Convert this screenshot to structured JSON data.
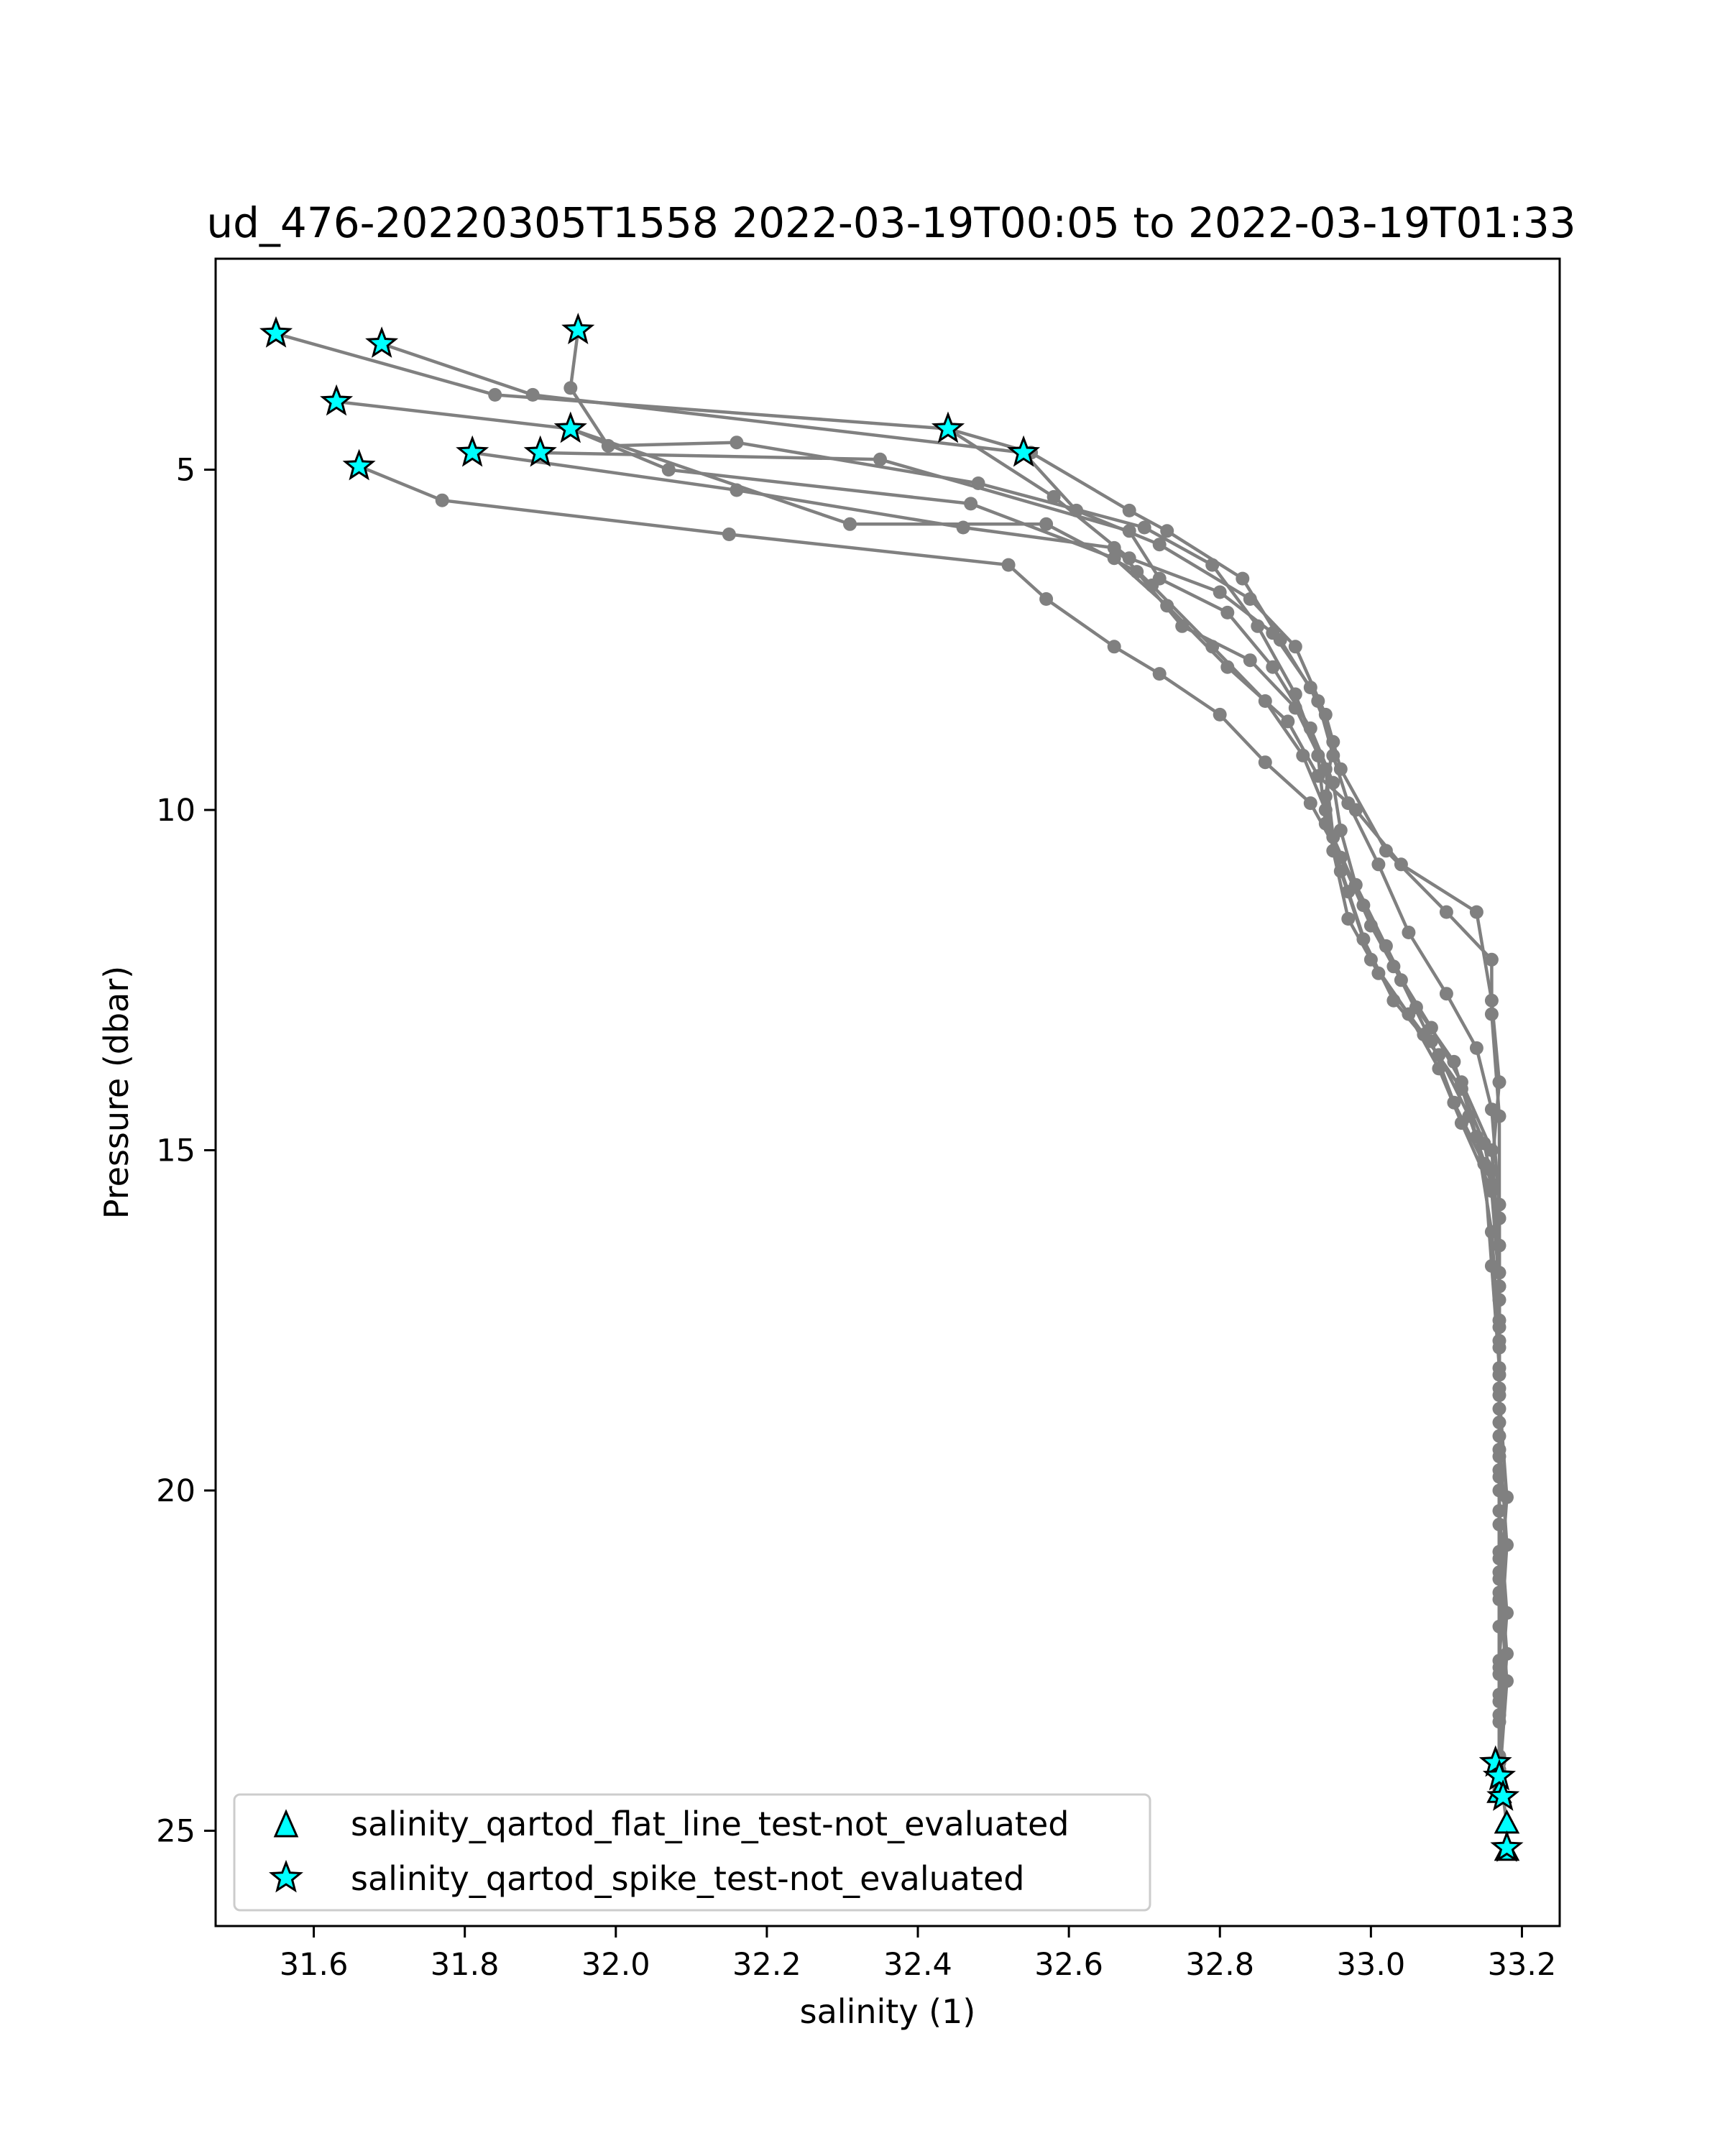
{
  "chart_data": {
    "type": "line",
    "title": "ud_476-20220305T1558 2022-03-19T00:05 to 2022-03-19T01:33",
    "xlabel": "salinity (1)",
    "ylabel": "Pressure (dbar)",
    "xlim": [
      31.47,
      33.25
    ],
    "ylim": [
      26.4,
      1.9
    ],
    "y_inverted": true,
    "grid": false,
    "xticks": [
      "31.6",
      "31.8",
      "32.0",
      "32.2",
      "32.4",
      "32.6",
      "32.8",
      "33.0",
      "33.2"
    ],
    "yticks": [
      "5",
      "10",
      "15",
      "20",
      "25"
    ],
    "line_color": "#808080",
    "marker_color": "#00ffff",
    "legend": {
      "position": "lower left",
      "entries": [
        {
          "marker": "triangle",
          "label": "salinity_qartod_flat_line_test-not_evaluated"
        },
        {
          "marker": "star",
          "label": "salinity_qartod_spike_test-not_evaluated"
        }
      ]
    },
    "series": [
      {
        "points": [
          [
            31.55,
            3.0
          ],
          [
            31.84,
            3.9
          ],
          [
            32.44,
            4.4
          ],
          [
            32.58,
            5.4
          ],
          [
            32.68,
            6.3
          ],
          [
            32.8,
            6.8
          ],
          [
            32.87,
            7.4
          ],
          [
            32.92,
            8.2
          ],
          [
            32.95,
            9.0
          ],
          [
            32.94,
            9.8
          ],
          [
            32.95,
            10.6
          ],
          [
            32.97,
            11.6
          ],
          [
            33.01,
            12.4
          ],
          [
            33.07,
            13.3
          ],
          [
            33.12,
            14.1
          ],
          [
            33.15,
            14.9
          ],
          [
            33.17,
            16.0
          ],
          [
            33.17,
            17.5
          ],
          [
            33.17,
            19.0
          ],
          [
            33.17,
            20.5
          ],
          [
            33.17,
            22.0
          ],
          [
            33.17,
            23.4
          ],
          [
            33.17,
            24.2
          ]
        ]
      },
      {
        "points": [
          [
            31.69,
            3.15
          ],
          [
            31.89,
            3.9
          ],
          [
            32.54,
            4.75
          ],
          [
            32.61,
            5.6
          ],
          [
            32.72,
            6.1
          ],
          [
            32.84,
            6.9
          ],
          [
            32.9,
            7.6
          ],
          [
            32.94,
            8.6
          ],
          [
            32.96,
            9.4
          ],
          [
            33.02,
            10.6
          ],
          [
            33.1,
            11.5
          ],
          [
            33.16,
            12.2
          ],
          [
            33.16,
            13.0
          ],
          [
            33.17,
            14.5
          ],
          [
            33.17,
            16.0
          ],
          [
            33.17,
            17.6
          ],
          [
            33.17,
            19.2
          ],
          [
            33.18,
            20.8
          ],
          [
            33.17,
            22.5
          ],
          [
            33.17,
            24.1
          ],
          [
            33.18,
            24.9
          ],
          [
            33.18,
            25.3
          ]
        ]
      },
      {
        "points": [
          [
            31.95,
            2.95
          ],
          [
            31.94,
            3.8
          ],
          [
            31.99,
            4.65
          ],
          [
            32.16,
            4.6
          ],
          [
            32.48,
            5.2
          ],
          [
            32.7,
            5.85
          ],
          [
            32.79,
            6.4
          ],
          [
            32.85,
            7.3
          ],
          [
            32.9,
            8.3
          ],
          [
            32.93,
            9.2
          ],
          [
            32.94,
            10.2
          ],
          [
            32.97,
            11.2
          ],
          [
            33.0,
            12.2
          ],
          [
            33.05,
            13.0
          ],
          [
            33.09,
            13.8
          ],
          [
            33.12,
            14.6
          ],
          [
            33.16,
            15.6
          ],
          [
            33.17,
            17.0
          ],
          [
            33.17,
            18.5
          ],
          [
            33.17,
            20.0
          ],
          [
            33.17,
            21.5
          ],
          [
            33.17,
            23.0
          ],
          [
            33.17,
            24.0
          ]
        ]
      },
      {
        "points": [
          [
            31.63,
            4.0
          ],
          [
            31.94,
            4.4
          ],
          [
            32.07,
            5.0
          ],
          [
            32.47,
            5.5
          ],
          [
            32.66,
            6.3
          ],
          [
            32.73,
            7.0
          ],
          [
            32.81,
            7.9
          ],
          [
            32.89,
            8.7
          ],
          [
            32.93,
            9.5
          ],
          [
            32.98,
            10.0
          ],
          [
            33.04,
            10.8
          ],
          [
            33.14,
            11.5
          ],
          [
            33.16,
            12.8
          ],
          [
            33.17,
            14.0
          ],
          [
            33.16,
            15.3
          ],
          [
            33.17,
            16.8
          ],
          [
            33.17,
            18.3
          ],
          [
            33.17,
            19.8
          ],
          [
            33.17,
            21.3
          ],
          [
            33.18,
            22.8
          ],
          [
            33.17,
            24.3
          ]
        ]
      },
      {
        "points": [
          [
            31.66,
            4.95
          ],
          [
            31.77,
            5.45
          ],
          [
            32.15,
            5.95
          ],
          [
            32.52,
            6.4
          ],
          [
            32.57,
            6.9
          ],
          [
            32.66,
            7.6
          ],
          [
            32.72,
            8.0
          ],
          [
            32.8,
            8.6
          ],
          [
            32.86,
            9.3
          ],
          [
            32.92,
            9.9
          ],
          [
            32.96,
            10.7
          ],
          [
            33.0,
            11.7
          ],
          [
            33.04,
            12.5
          ],
          [
            33.08,
            13.4
          ],
          [
            33.11,
            14.3
          ],
          [
            33.15,
            15.2
          ],
          [
            33.16,
            16.7
          ],
          [
            33.17,
            18.2
          ],
          [
            33.17,
            19.7
          ],
          [
            33.17,
            21.2
          ],
          [
            33.17,
            22.7
          ],
          [
            33.17,
            24.0
          ]
        ]
      },
      {
        "points": [
          [
            31.81,
            4.75
          ],
          [
            32.16,
            5.3
          ],
          [
            32.46,
            5.85
          ],
          [
            32.66,
            6.15
          ],
          [
            32.71,
            6.7
          ],
          [
            32.79,
            7.6
          ],
          [
            32.86,
            8.4
          ],
          [
            32.91,
            9.2
          ],
          [
            32.94,
            10.0
          ],
          [
            32.96,
            10.9
          ],
          [
            32.99,
            11.9
          ],
          [
            33.03,
            12.8
          ],
          [
            33.09,
            13.6
          ],
          [
            33.13,
            14.5
          ],
          [
            33.16,
            15.5
          ],
          [
            33.17,
            17.0
          ],
          [
            33.17,
            18.6
          ],
          [
            33.18,
            20.1
          ],
          [
            33.17,
            21.6
          ],
          [
            33.17,
            23.1
          ],
          [
            33.17,
            24.1
          ]
        ]
      },
      {
        "points": [
          [
            31.9,
            4.75
          ],
          [
            32.35,
            4.85
          ],
          [
            32.68,
            5.9
          ],
          [
            32.72,
            6.6
          ],
          [
            32.81,
            7.1
          ],
          [
            32.87,
            7.9
          ],
          [
            32.92,
            8.8
          ],
          [
            32.95,
            9.6
          ],
          [
            32.96,
            10.3
          ],
          [
            32.98,
            11.1
          ],
          [
            33.02,
            12.0
          ],
          [
            33.06,
            12.9
          ],
          [
            33.11,
            13.7
          ],
          [
            33.14,
            14.8
          ],
          [
            33.16,
            16.2
          ],
          [
            33.17,
            17.8
          ],
          [
            33.17,
            19.4
          ],
          [
            33.17,
            20.9
          ],
          [
            33.18,
            22.4
          ],
          [
            33.17,
            23.9
          ]
        ]
      },
      {
        "points": [
          [
            31.94,
            4.4
          ],
          [
            32.31,
            5.8
          ],
          [
            32.57,
            5.8
          ],
          [
            32.69,
            6.5
          ],
          [
            32.75,
            7.3
          ],
          [
            32.84,
            7.8
          ],
          [
            32.9,
            8.5
          ],
          [
            32.94,
            9.4
          ],
          [
            32.95,
            10.4
          ],
          [
            32.99,
            11.4
          ],
          [
            33.03,
            12.3
          ],
          [
            33.08,
            13.2
          ],
          [
            33.12,
            14.0
          ],
          [
            33.16,
            15.0
          ],
          [
            33.17,
            16.4
          ],
          [
            33.17,
            17.9
          ],
          [
            33.17,
            19.5
          ],
          [
            33.17,
            21.0
          ],
          [
            33.17,
            22.6
          ],
          [
            33.17,
            24.2
          ]
        ]
      },
      {
        "points": [
          [
            32.44,
            4.4
          ],
          [
            32.55,
            4.75
          ],
          [
            32.68,
            5.6
          ],
          [
            32.73,
            5.9
          ],
          [
            32.83,
            6.6
          ],
          [
            32.88,
            7.5
          ],
          [
            32.93,
            8.4
          ],
          [
            32.95,
            9.2
          ],
          [
            32.97,
            9.9
          ],
          [
            33.01,
            10.8
          ],
          [
            33.05,
            11.8
          ],
          [
            33.1,
            12.7
          ],
          [
            33.14,
            13.5
          ],
          [
            33.16,
            14.4
          ],
          [
            33.17,
            15.8
          ],
          [
            33.17,
            17.2
          ],
          [
            33.17,
            18.8
          ],
          [
            33.17,
            20.3
          ],
          [
            33.18,
            21.8
          ],
          [
            33.17,
            23.3
          ],
          [
            33.17,
            24.4
          ]
        ]
      }
    ],
    "flat_line_markers": [
      [
        33.18,
        24.9
      ],
      [
        33.18,
        25.3
      ],
      [
        33.17,
        24.45
      ]
    ],
    "spike_markers": [
      [
        31.55,
        3.0
      ],
      [
        31.69,
        3.15
      ],
      [
        31.95,
        2.95
      ],
      [
        31.63,
        4.0
      ],
      [
        31.66,
        4.95
      ],
      [
        31.81,
        4.75
      ],
      [
        31.9,
        4.75
      ],
      [
        31.94,
        4.4
      ],
      [
        32.44,
        4.4
      ],
      [
        32.54,
        4.75
      ],
      [
        33.165,
        24.0
      ],
      [
        33.17,
        24.2
      ],
      [
        33.175,
        24.5
      ],
      [
        33.18,
        25.25
      ]
    ]
  }
}
